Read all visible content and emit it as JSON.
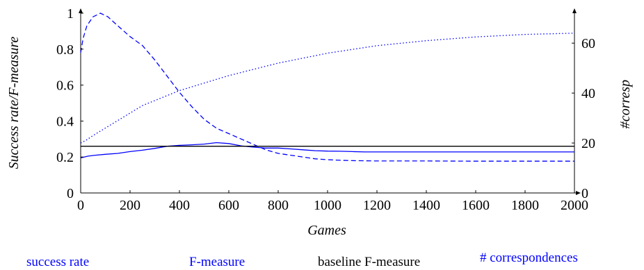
{
  "chart_data": {
    "type": "line",
    "xlabel": "Games",
    "ylabel_left": "Success rate/F-measure",
    "ylabel_right": "#corresp",
    "xlim": [
      0,
      2000
    ],
    "ylim_left": [
      0,
      1
    ],
    "ylim_right": [
      0,
      72
    ],
    "x_ticks": [
      "0",
      "200",
      "400",
      "600",
      "800",
      "1000",
      "1200",
      "1400",
      "1600",
      "1800",
      "2000"
    ],
    "y_left_ticks": [
      "0",
      "0.2",
      "0.4",
      "0.6",
      "0.8",
      "1"
    ],
    "y_right_ticks": [
      "0",
      "20",
      "40",
      "60"
    ],
    "grid": false,
    "legend_position": "bottom",
    "series": [
      {
        "name": "success rate",
        "axis": "left",
        "style": "solid",
        "color": "#0000ff",
        "x": [
          0,
          30,
          60,
          100,
          150,
          200,
          250,
          300,
          350,
          400,
          450,
          500,
          550,
          600,
          650,
          700,
          750,
          800,
          850,
          900,
          950,
          1000,
          1050,
          1100,
          1150,
          1200,
          1300,
          1400,
          1500,
          1600,
          1700,
          1800,
          1900,
          2000
        ],
        "y": [
          0.195,
          0.205,
          0.21,
          0.215,
          0.22,
          0.23,
          0.238,
          0.248,
          0.26,
          0.265,
          0.268,
          0.272,
          0.28,
          0.275,
          0.262,
          0.255,
          0.25,
          0.25,
          0.245,
          0.24,
          0.235,
          0.233,
          0.232,
          0.23,
          0.228,
          0.228,
          0.228,
          0.228,
          0.228,
          0.228,
          0.228,
          0.228,
          0.228,
          0.228
        ]
      },
      {
        "name": "F-measure",
        "axis": "left",
        "style": "dashed",
        "color": "#0000ff",
        "x": [
          0,
          10,
          25,
          50,
          80,
          110,
          150,
          200,
          250,
          300,
          350,
          400,
          450,
          500,
          550,
          600,
          650,
          700,
          750,
          800,
          850,
          900,
          950,
          1000,
          1050,
          1100,
          1200,
          1400,
          1600,
          1800,
          2000
        ],
        "y": [
          0.78,
          0.86,
          0.93,
          0.98,
          1.0,
          0.98,
          0.93,
          0.87,
          0.82,
          0.74,
          0.65,
          0.56,
          0.48,
          0.41,
          0.36,
          0.33,
          0.3,
          0.27,
          0.24,
          0.22,
          0.21,
          0.2,
          0.19,
          0.185,
          0.182,
          0.18,
          0.178,
          0.178,
          0.177,
          0.177,
          0.177
        ]
      },
      {
        "name": "baseline F-measure",
        "axis": "left",
        "style": "solid",
        "color": "#000000",
        "x": [
          0,
          2000
        ],
        "y": [
          0.26,
          0.26
        ]
      },
      {
        "name": "# correspondences",
        "axis": "right",
        "style": "dotted",
        "color": "#0000ff",
        "x": [
          0,
          20,
          50,
          100,
          150,
          200,
          250,
          300,
          400,
          500,
          600,
          700,
          800,
          900,
          1000,
          1200,
          1400,
          1600,
          1800,
          2000
        ],
        "y": [
          20,
          21,
          23,
          26,
          29,
          32,
          35,
          37,
          41,
          44,
          47,
          49.5,
          52,
          54,
          56,
          59,
          61,
          62.5,
          63.5,
          64
        ]
      }
    ]
  }
}
